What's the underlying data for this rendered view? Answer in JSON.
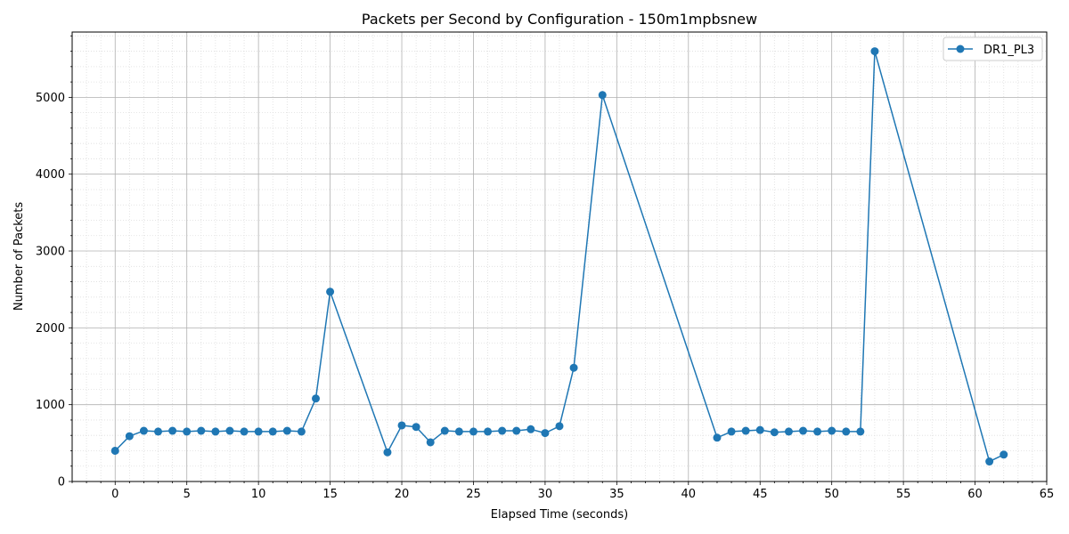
{
  "chart_data": {
    "type": "line",
    "title": "Packets per Second by Configuration - 150m1mpbsnew",
    "xlabel": "Elapsed Time (seconds)",
    "ylabel": "Number of Packets",
    "xlim": [
      -3,
      65
    ],
    "ylim": [
      0,
      5850
    ],
    "xticks": [
      0,
      5,
      10,
      15,
      20,
      25,
      30,
      35,
      40,
      45,
      50,
      55,
      60,
      65
    ],
    "yticks": [
      0,
      1000,
      2000,
      3000,
      4000,
      5000
    ],
    "grid": true,
    "minor_grid": true,
    "legend_position": "top-right",
    "series": [
      {
        "name": "DR1_PL3",
        "color": "#1f77b4",
        "x": [
          0,
          1,
          2,
          3,
          4,
          5,
          6,
          7,
          8,
          9,
          10,
          11,
          12,
          13,
          14,
          15,
          19,
          20,
          21,
          22,
          23,
          24,
          25,
          26,
          27,
          28,
          29,
          30,
          31,
          32,
          34,
          42,
          43,
          44,
          45,
          46,
          47,
          48,
          49,
          50,
          51,
          52,
          53,
          61,
          62
        ],
        "y": [
          400,
          590,
          660,
          650,
          660,
          650,
          660,
          650,
          660,
          650,
          650,
          650,
          660,
          650,
          1080,
          2470,
          380,
          730,
          710,
          510,
          660,
          650,
          650,
          650,
          660,
          660,
          680,
          630,
          720,
          1480,
          5030,
          570,
          650,
          660,
          670,
          640,
          650,
          660,
          650,
          660,
          650,
          650,
          5600,
          260,
          350
        ]
      }
    ]
  }
}
